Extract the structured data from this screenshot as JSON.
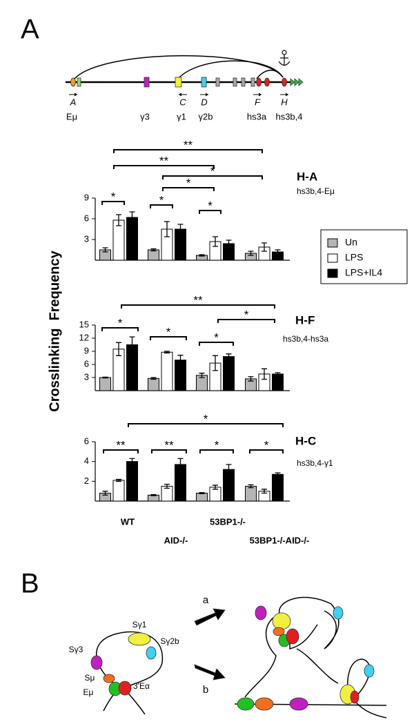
{
  "figure": {
    "panel_a": "A",
    "panel_b": "B",
    "y_label": "Crosslinking  Frequency",
    "map_primers": [
      "A",
      "C",
      "D",
      "F",
      "H"
    ],
    "map_elements": [
      "Eμ",
      "γ3",
      "γ1",
      "γ2b",
      "hs3a",
      "hs3b,4"
    ],
    "loop_labels": [
      "Sγ1",
      "Sγ3",
      "Sγ2b",
      "Sμ",
      "Eμ",
      "3'Eα"
    ],
    "arrows": [
      "a",
      "b"
    ]
  },
  "chart_data": [
    {
      "type": "bar",
      "title": "H-A",
      "subtitle": "hs3b,4-Eμ",
      "categories": [
        null,
        null,
        null,
        null
      ],
      "series": [
        {
          "name": "Un",
          "color": "#b5b5b5",
          "values": [
            1.5,
            1.5,
            0.7,
            1.0
          ],
          "errors": [
            0.3,
            0.15,
            0.1,
            0.3
          ]
        },
        {
          "name": "LPS",
          "color": "#ffffff",
          "values": [
            5.8,
            4.5,
            2.7,
            1.9
          ],
          "errors": [
            0.8,
            1.1,
            0.7,
            0.6
          ]
        },
        {
          "name": "LPS+IL4",
          "color": "#000000",
          "values": [
            6.2,
            4.5,
            2.4,
            1.2
          ],
          "errors": [
            0.8,
            0.7,
            0.5,
            0.3
          ]
        }
      ],
      "ylim": [
        0,
        9
      ],
      "yticks": [
        3,
        6,
        9
      ],
      "annotations": [
        "**",
        "**",
        "*",
        "*",
        "*",
        "*",
        "*"
      ]
    },
    {
      "type": "bar",
      "title": "H-F",
      "subtitle": "hs3b,4-hs3a",
      "categories": [
        null,
        null,
        null,
        null
      ],
      "series": [
        {
          "color": "#b5b5b5",
          "values": [
            3.0,
            2.8,
            3.5,
            2.7
          ],
          "errors": [
            0.1,
            0.2,
            0.5,
            0.5
          ]
        },
        {
          "color": "#ffffff",
          "values": [
            9.5,
            8.8,
            6.3,
            3.8
          ],
          "errors": [
            1.5,
            0.2,
            1.7,
            1.2
          ]
        },
        {
          "color": "#000000",
          "values": [
            10.5,
            7.0,
            7.8,
            3.8
          ],
          "errors": [
            1.8,
            1.1,
            0.6,
            0.3
          ]
        }
      ],
      "ylim": [
        0,
        15
      ],
      "yticks": [
        3,
        6,
        9,
        12,
        15
      ],
      "annotations": [
        "**",
        "*",
        "*",
        "*",
        "*"
      ]
    },
    {
      "type": "bar",
      "title": "H-C",
      "subtitle": "hs3b,4-γ1",
      "categories": [
        "WT",
        "AID-/-",
        "53BP1-/-",
        "53BP1-/-AID-/-"
      ],
      "series": [
        {
          "color": "#b5b5b5",
          "values": [
            0.8,
            0.6,
            0.8,
            1.5
          ],
          "errors": [
            0.2,
            0.05,
            0.05,
            0.15
          ]
        },
        {
          "color": "#ffffff",
          "values": [
            2.1,
            1.5,
            1.4,
            1.0
          ],
          "errors": [
            0.1,
            0.2,
            0.2,
            0.2
          ]
        },
        {
          "color": "#000000",
          "values": [
            4.0,
            3.7,
            3.2,
            2.7
          ],
          "errors": [
            0.3,
            0.6,
            0.5,
            0.15
          ]
        }
      ],
      "ylim": [
        0,
        6
      ],
      "yticks": [
        2,
        4,
        6
      ],
      "annotations": [
        "*",
        "**",
        "**",
        "*",
        "*"
      ]
    }
  ]
}
